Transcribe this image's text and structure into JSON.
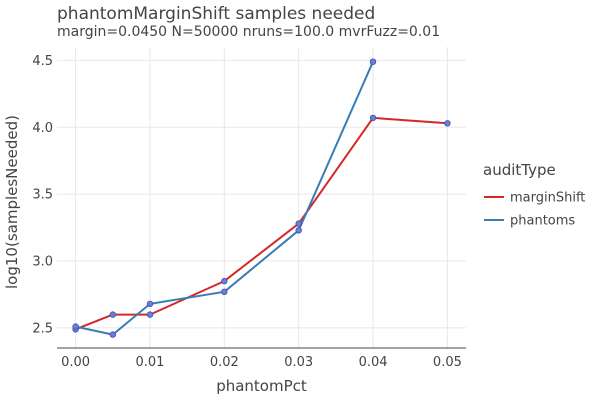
{
  "chart_data": {
    "type": "line",
    "title": "phantomMarginShift samples needed",
    "subtitle": "margin=0.0450 N=50000 nruns=100.0 mvrFuzz=0.01",
    "xlabel": "phantomPct",
    "ylabel": "log10(samplesNeeded)",
    "xlim": [
      -0.0025,
      0.0525
    ],
    "ylim": [
      2.35,
      4.6
    ],
    "x_ticks": [
      0,
      0.01,
      0.02,
      0.03,
      0.04,
      0.05
    ],
    "x_tick_labels": [
      "0.00",
      "0.01",
      "0.02",
      "0.03",
      "0.04",
      "0.05"
    ],
    "y_ticks": [
      2.5,
      3.0,
      3.5,
      4.0,
      4.5
    ],
    "y_tick_labels": [
      "2.5",
      "3.0",
      "3.5",
      "4.0",
      "4.5"
    ],
    "grid": true,
    "legend": {
      "title": "auditType",
      "position": "right"
    },
    "series": [
      {
        "name": "marginShift",
        "color": "#d62728",
        "x": [
          0,
          0.005,
          0.01,
          0.02,
          0.03,
          0.04,
          0.05
        ],
        "y": [
          2.49,
          2.6,
          2.6,
          2.85,
          3.28,
          4.07,
          4.03
        ]
      },
      {
        "name": "phantoms",
        "color": "#3a7db5",
        "x": [
          0,
          0.005,
          0.01,
          0.02,
          0.03,
          0.04
        ],
        "y": [
          2.51,
          2.45,
          2.68,
          2.77,
          3.23,
          4.49
        ]
      }
    ],
    "marker_color": "#6b7fd6"
  }
}
